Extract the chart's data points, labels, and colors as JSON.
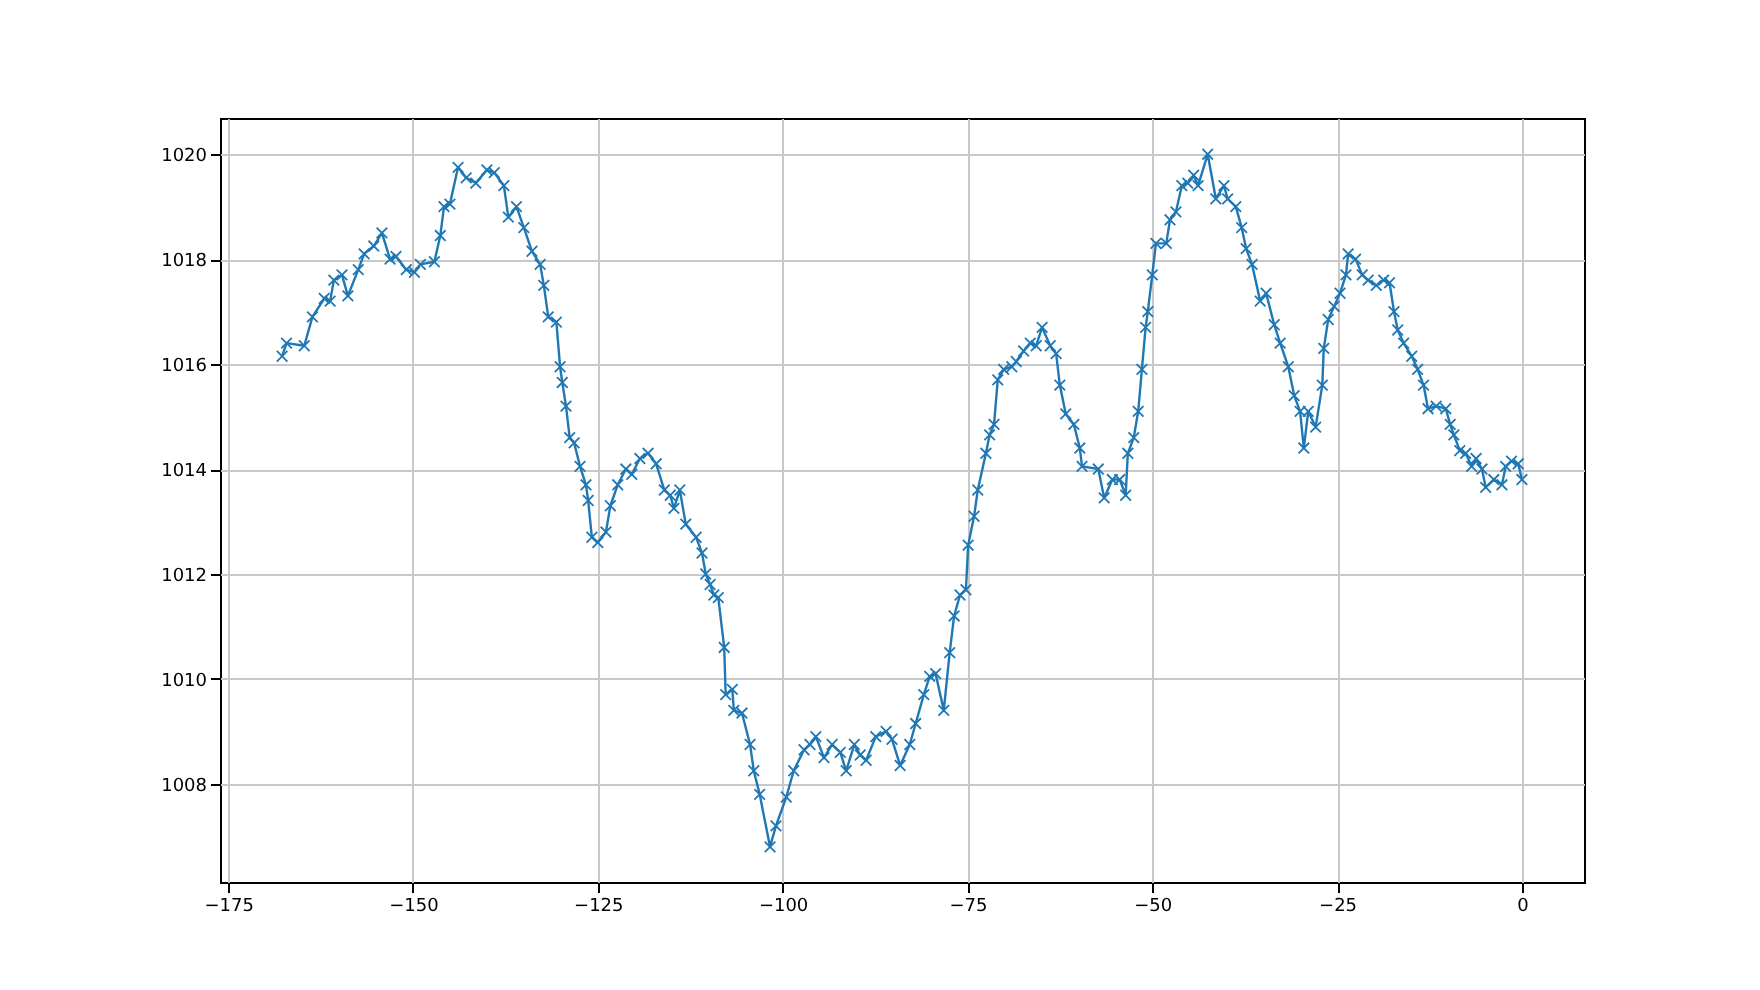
{
  "chart_data": {
    "type": "line",
    "marker": "cross",
    "grid": true,
    "line_style": "solid",
    "xlim": [
      -176.1,
      8.4
    ],
    "ylim": [
      1006.13,
      1020.69
    ],
    "xticks": [
      -175,
      -150,
      -125,
      -100,
      -75,
      -50,
      -25,
      0
    ],
    "yticks": [
      1008,
      1010,
      1012,
      1014,
      1016,
      1018,
      1020
    ],
    "series": [
      {
        "color": "#1f77b4",
        "x": [
          -167.7,
          -167.1,
          -164.7,
          -163.6,
          -162,
          -161.2,
          -160.7,
          -159.6,
          -158.8,
          -157.4,
          -156.6,
          -155.3,
          -154.2,
          -153.1,
          -152.3,
          -150.9,
          -149.8,
          -149,
          -147.1,
          -146.3,
          -145.8,
          -145,
          -143.9,
          -142.8,
          -141.5,
          -140,
          -139,
          -137.7,
          -137.1,
          -136,
          -135,
          -133.9,
          -132.8,
          -132.3,
          -131.7,
          -130.6,
          -130.1,
          -129.8,
          -129.3,
          -128.8,
          -128.2,
          -127.4,
          -126.6,
          -126.3,
          -125.8,
          -125,
          -123.9,
          -123.3,
          -122.3,
          -121.2,
          -120.4,
          -119.3,
          -118.2,
          -117.1,
          -116,
          -115.2,
          -114.7,
          -113.9,
          -113.1,
          -111.7,
          -110.9,
          -110.4,
          -109.8,
          -109.3,
          -108.7,
          -107.9,
          -107.7,
          -106.8,
          -106.6,
          -105.5,
          -104.4,
          -103.9,
          -103.1,
          -101.7,
          -100.9,
          -99.5,
          -98.5,
          -97.1,
          -96.3,
          -95.5,
          -94.4,
          -93.3,
          -92.2,
          -91.4,
          -90.3,
          -89.5,
          -88.7,
          -87.4,
          -86,
          -85.2,
          -84.1,
          -82.8,
          -82,
          -80.9,
          -80.1,
          -79.3,
          -78.2,
          -77.4,
          -76.8,
          -76,
          -75.2,
          -74.9,
          -74.1,
          -73.6,
          -72.5,
          -72,
          -71.4,
          -70.9,
          -70.1,
          -69,
          -68.4,
          -67.4,
          -66.5,
          -65.7,
          -64.9,
          -63.8,
          -63,
          -62.5,
          -61.7,
          -60.6,
          -59.8,
          -59.5,
          -57.3,
          -56.5,
          -55.4,
          -54.4,
          -53.6,
          -53.3,
          -52.5,
          -51.9,
          -51.4,
          -50.9,
          -50.6,
          -50,
          -49.5,
          -48.1,
          -47.6,
          -46.8,
          -46,
          -45.2,
          -44.4,
          -43.8,
          -42.5,
          -41.4,
          -40.3,
          -39.8,
          -38.7,
          -37.9,
          -37.3,
          -36.5,
          -35.4,
          -34.6,
          -33.5,
          -32.7,
          -31.6,
          -30.8,
          -30,
          -29.5,
          -28.9,
          -27.9,
          -27,
          -26.8,
          -26.2,
          -25.4,
          -24.6,
          -23.8,
          -23.5,
          -22.5,
          -21.6,
          -20.8,
          -19.7,
          -18.7,
          -17.9,
          -17.3,
          -16.8,
          -16,
          -14.9,
          -14.1,
          -13.3,
          -12.7,
          -11.6,
          -10.3,
          -9.7,
          -9.2,
          -8.4,
          -7.6,
          -6.8,
          -6.2,
          -5.4,
          -4.9,
          -3.8,
          -2.7,
          -2.2,
          -1.4,
          -0.5,
          0
        ],
        "values": [
          1016.15,
          1016.4,
          1016.35,
          1016.9,
          1017.25,
          1017.2,
          1017.6,
          1017.7,
          1017.3,
          1017.8,
          1018.1,
          1018.25,
          1018.5,
          1018.0,
          1018.05,
          1017.8,
          1017.75,
          1017.9,
          1017.95,
          1018.45,
          1019.0,
          1019.05,
          1019.75,
          1019.55,
          1019.45,
          1019.7,
          1019.65,
          1019.4,
          1018.8,
          1019.0,
          1018.6,
          1018.15,
          1017.9,
          1017.5,
          1016.9,
          1016.8,
          1015.95,
          1015.65,
          1015.2,
          1014.6,
          1014.5,
          1014.05,
          1013.7,
          1013.4,
          1012.7,
          1012.6,
          1012.8,
          1013.3,
          1013.7,
          1014.0,
          1013.9,
          1014.2,
          1014.3,
          1014.1,
          1013.6,
          1013.5,
          1013.25,
          1013.6,
          1012.95,
          1012.7,
          1012.4,
          1012.0,
          1011.8,
          1011.6,
          1011.55,
          1010.6,
          1009.7,
          1009.8,
          1009.4,
          1009.35,
          1008.75,
          1008.25,
          1007.8,
          1006.8,
          1007.2,
          1007.75,
          1008.25,
          1008.65,
          1008.75,
          1008.9,
          1008.5,
          1008.75,
          1008.6,
          1008.25,
          1008.75,
          1008.55,
          1008.45,
          1008.9,
          1009.0,
          1008.85,
          1008.35,
          1008.75,
          1009.15,
          1009.7,
          1010.05,
          1010.1,
          1009.4,
          1010.5,
          1011.2,
          1011.6,
          1011.7,
          1012.55,
          1013.1,
          1013.6,
          1014.3,
          1014.65,
          1014.85,
          1015.7,
          1015.9,
          1015.95,
          1016.05,
          1016.25,
          1016.4,
          1016.35,
          1016.7,
          1016.35,
          1016.2,
          1015.6,
          1015.05,
          1014.85,
          1014.4,
          1014.05,
          1014.0,
          1013.45,
          1013.8,
          1013.8,
          1013.5,
          1014.3,
          1014.6,
          1015.1,
          1015.9,
          1016.7,
          1017.0,
          1017.7,
          1018.3,
          1018.3,
          1018.75,
          1018.9,
          1019.4,
          1019.45,
          1019.6,
          1019.4,
          1020.0,
          1019.15,
          1019.4,
          1019.15,
          1019.0,
          1018.6,
          1018.2,
          1017.9,
          1017.2,
          1017.35,
          1016.75,
          1016.4,
          1015.95,
          1015.4,
          1015.1,
          1014.4,
          1015.1,
          1014.8,
          1015.6,
          1016.3,
          1016.85,
          1017.1,
          1017.35,
          1017.7,
          1018.1,
          1018.0,
          1017.7,
          1017.6,
          1017.5,
          1017.6,
          1017.55,
          1017.0,
          1016.65,
          1016.4,
          1016.15,
          1015.9,
          1015.6,
          1015.15,
          1015.2,
          1015.15,
          1014.85,
          1014.65,
          1014.35,
          1014.3,
          1014.05,
          1014.2,
          1014.0,
          1013.65,
          1013.8,
          1013.7,
          1014.05,
          1014.15,
          1014.1,
          1013.8
        ]
      }
    ]
  }
}
